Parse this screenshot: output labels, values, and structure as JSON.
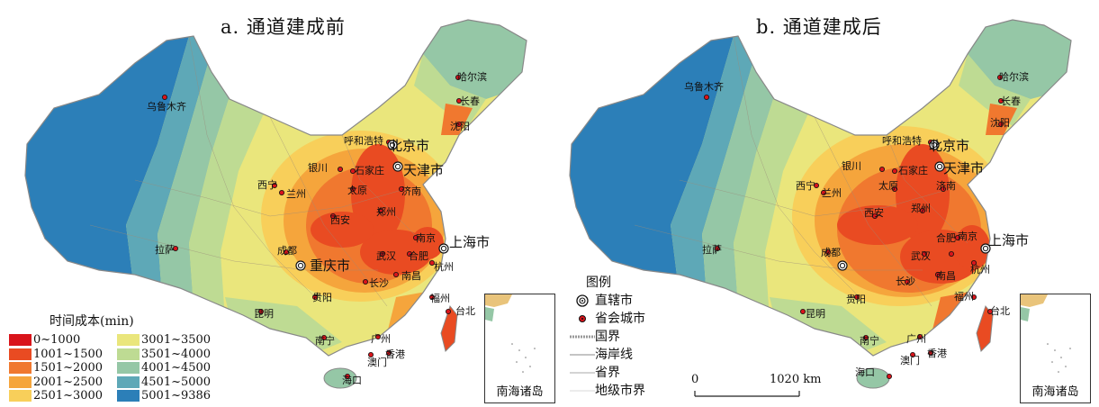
{
  "panels": {
    "left_title": "a. 通道建成前",
    "right_title": "b. 通道建成后"
  },
  "cities": {
    "urumqi": "乌鲁木齐",
    "harbin": "哈尔滨",
    "changchun": "长春",
    "shenyang": "沈阳",
    "hohhot": "呼和浩特",
    "beijing": "北京市",
    "tianjin": "天津市",
    "yinchuan": "银川",
    "shijiazhuang": "石家庄",
    "taiyuan": "太原",
    "jinan": "济南",
    "xining": "西宁",
    "lanzhou": "兰州",
    "xian": "西安",
    "zhengzhou": "郑州",
    "nanjing": "南京",
    "shanghai": "上海市",
    "hefei": "合肥",
    "wuhan": "武汉",
    "hangzhou": "杭州",
    "chengdu": "成都",
    "chongqing": "重庆市",
    "lhasa": "拉萨",
    "changsha": "长沙",
    "nanchang": "南昌",
    "fuzhou": "福州",
    "guiyang": "贵阳",
    "kunming": "昆明",
    "taipei": "台北",
    "nanning": "南宁",
    "guangzhou": "广州",
    "macau": "澳门",
    "hongkong": "香港",
    "haikou": "海口"
  },
  "legend": {
    "title": "时间成本(min)",
    "items": [
      {
        "label": "0~1000",
        "color": "#d9141b"
      },
      {
        "label": "1001~1500",
        "color": "#e94b22"
      },
      {
        "label": "1501~2000",
        "color": "#f0782f"
      },
      {
        "label": "2001~2500",
        "color": "#f5a53c"
      },
      {
        "label": "2501~3000",
        "color": "#f8cf5a"
      },
      {
        "label": "3001~3500",
        "color": "#eae67c"
      },
      {
        "label": "3501~4000",
        "color": "#bedb93"
      },
      {
        "label": "4001~4500",
        "color": "#95c7a6"
      },
      {
        "label": "4501~5000",
        "color": "#5ea8b7"
      },
      {
        "label": "5001~9386",
        "color": "#2c7fb8"
      }
    ]
  },
  "key": {
    "title": "图例",
    "municipality": "直辖市",
    "provincial_capital": "省会城市",
    "national_border": "国界",
    "coastline": "海岸线",
    "provincial_border": "省界",
    "prefecture_border": "地级市界"
  },
  "inset_label": "南海诸岛",
  "scale": {
    "zero": "0",
    "distance": "1020 km"
  }
}
